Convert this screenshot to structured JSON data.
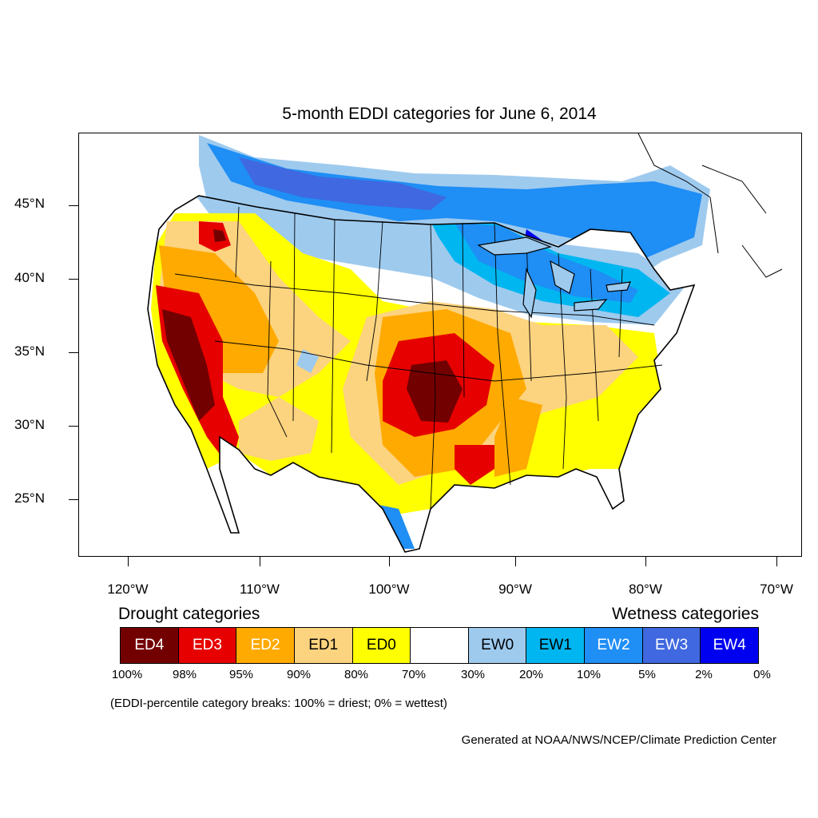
{
  "title": "5-month EDDI categories for June 6, 2014",
  "lat_labels": [
    "45°N",
    "40°N",
    "35°N",
    "30°N",
    "25°N"
  ],
  "lon_labels": [
    "120°W",
    "110°W",
    "100°W",
    "90°W",
    "80°W",
    "70°W"
  ],
  "legend": {
    "drought_title": "Drought categories",
    "wetness_title": "Wetness categories",
    "categories": [
      {
        "label": "ED4",
        "color": "#730000",
        "text_color": "#ffffff"
      },
      {
        "label": "ED3",
        "color": "#e60000",
        "text_color": "#ffffff"
      },
      {
        "label": "ED2",
        "color": "#ffaa00",
        "text_color": "#ffffff"
      },
      {
        "label": "ED1",
        "color": "#fcd37f",
        "text_color": "#000000"
      },
      {
        "label": "ED0",
        "color": "#ffff00",
        "text_color": "#000000"
      },
      {
        "label": "",
        "color": "#ffffff",
        "text_color": "#000000"
      },
      {
        "label": "EW0",
        "color": "#9ecaee",
        "text_color": "#000000"
      },
      {
        "label": "EW1",
        "color": "#00b6f0",
        "text_color": "#000000"
      },
      {
        "label": "EW2",
        "color": "#1f8ef5",
        "text_color": "#ffffff"
      },
      {
        "label": "EW3",
        "color": "#4068e0",
        "text_color": "#ffffff"
      },
      {
        "label": "EW4",
        "color": "#0000f0",
        "text_color": "#ffffff"
      }
    ],
    "percentiles": [
      "100%",
      "98%",
      "95%",
      "90%",
      "80%",
      "70%",
      "30%",
      "20%",
      "10%",
      "5%",
      "2%",
      "0%"
    ]
  },
  "note": "(EDDI-percentile category breaks: 100% = driest; 0% = wettest)",
  "credit": "Generated at NOAA/NWS/NCEP/Climate Prediction Center"
}
